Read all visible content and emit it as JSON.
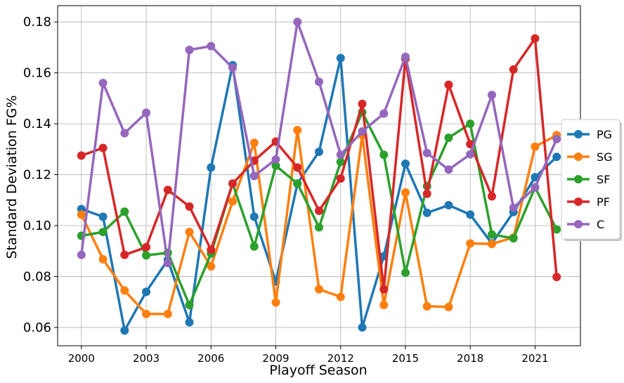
{
  "chart_data": {
    "type": "line",
    "xlabel": "Playoff Season",
    "ylabel": "Standard Deviation FG%",
    "x": [
      2000,
      2001,
      2002,
      2003,
      2004,
      2005,
      2006,
      2007,
      2008,
      2009,
      2010,
      2011,
      2012,
      2013,
      2014,
      2015,
      2016,
      2017,
      2018,
      2019,
      2020,
      2021,
      2022
    ],
    "xticks": [
      2000,
      2003,
      2006,
      2009,
      2012,
      2015,
      2018,
      2021
    ],
    "xlim": [
      1998.9,
      2023.1
    ],
    "yticks": [
      0.06,
      0.08,
      0.1,
      0.12,
      0.14,
      0.16,
      0.18
    ],
    "ytick_labels": [
      "0.06",
      "0.08",
      "0.10",
      "0.12",
      "0.14",
      "0.16",
      "0.18"
    ],
    "ylim": [
      0.0528,
      0.1864
    ],
    "grid": true,
    "legend_position": "center-right",
    "series": [
      {
        "name": "PG",
        "color": "#1f77b4",
        "values": [
          0.1065,
          0.1035,
          0.0588,
          0.074,
          0.0865,
          0.062,
          0.1228,
          0.163,
          0.1035,
          0.078,
          0.1165,
          0.129,
          0.1658,
          0.06,
          0.088,
          0.1243,
          0.105,
          0.108,
          0.1043,
          0.093,
          0.1053,
          0.119,
          0.127
        ]
      },
      {
        "name": "SG",
        "color": "#ff7f0e",
        "values": [
          0.1043,
          0.0868,
          0.0745,
          0.0653,
          0.0653,
          0.0975,
          0.084,
          0.1095,
          0.1325,
          0.0698,
          0.1375,
          0.075,
          0.072,
          0.1355,
          0.0688,
          0.113,
          0.0683,
          0.068,
          0.093,
          0.0928,
          0.0953,
          0.131,
          0.1355
        ]
      },
      {
        "name": "SF",
        "color": "#2ca02c",
        "values": [
          0.096,
          0.0975,
          0.1055,
          0.0883,
          0.0893,
          0.0688,
          0.089,
          0.1165,
          0.0918,
          0.1235,
          0.1165,
          0.0993,
          0.125,
          0.1445,
          0.1278,
          0.0815,
          0.1155,
          0.1345,
          0.14,
          0.0965,
          0.095,
          0.115,
          0.0985
        ]
      },
      {
        "name": "PF",
        "color": "#d62728",
        "values": [
          0.1275,
          0.1305,
          0.0885,
          0.0915,
          0.114,
          0.1075,
          0.0905,
          0.1165,
          0.1255,
          0.133,
          0.1228,
          0.1058,
          0.1185,
          0.1478,
          0.075,
          0.1655,
          0.1125,
          0.1553,
          0.132,
          0.1115,
          0.1613,
          0.1735,
          0.0798
        ]
      },
      {
        "name": "C",
        "color": "#9467bd",
        "values": [
          0.0885,
          0.156,
          0.1363,
          0.1443,
          0.0853,
          0.169,
          0.1705,
          0.162,
          0.1195,
          0.126,
          0.18,
          0.1565,
          0.1278,
          0.137,
          0.144,
          0.1663,
          0.1285,
          0.122,
          0.128,
          0.1513,
          0.107,
          0.115,
          0.134
        ]
      }
    ]
  }
}
